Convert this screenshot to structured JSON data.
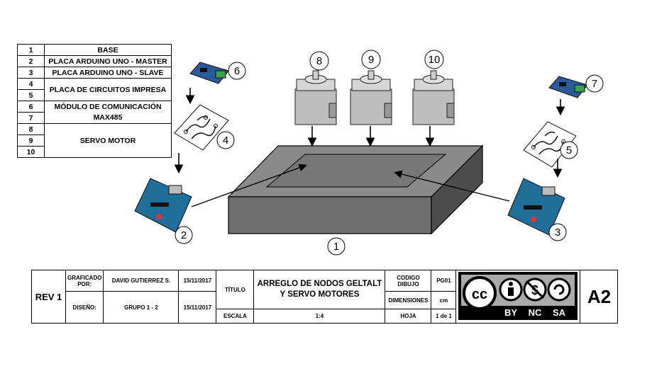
{
  "legend": [
    {
      "num": "1",
      "desc": "BASE"
    },
    {
      "num": "2",
      "desc": "PLACA ARDUINO UNO - MASTER"
    },
    {
      "num": "3",
      "desc": "PLACA ARDUINO UNO - SLAVE"
    },
    {
      "num": "4",
      "desc": "PLACA DE CIRCUITOS IMPRESA"
    },
    {
      "num": "5",
      "desc": ""
    },
    {
      "num": "6",
      "desc": "MÓDULO DE COMUNICACIÓN"
    },
    {
      "num": "7",
      "desc": "MAX485"
    },
    {
      "num": "8",
      "desc": ""
    },
    {
      "num": "9",
      "desc": "SERVO MOTOR"
    },
    {
      "num": "10",
      "desc": ""
    }
  ],
  "callouts": {
    "c1": "1",
    "c2": "2",
    "c3": "3",
    "c4": "4",
    "c5": "5",
    "c6": "6",
    "c7": "7",
    "c8": "8",
    "c9": "9",
    "c10": "10"
  },
  "title_block": {
    "rev": "REV 1",
    "graficado_label": "GRAFICADO POR:",
    "graficado_value": "DAVID GUTIERREZ S.",
    "graficado_date": "15/11/2017",
    "diseno_label": "DISEÑO:",
    "diseno_value": "GRUPO 1 - 2",
    "diseno_date": "15/11/2017",
    "titulo_label": "TÍTULO",
    "titulo_value": "ARREGLO DE NODOS GELTALT Y SERVO MOTORES",
    "escala_label": "ESCALA",
    "escala_value": "1:4",
    "codigo_label": "CODIGO DIBUJO",
    "codigo_value": "PG01",
    "dimensiones_label": "DIMENSIONES",
    "dimensiones_value": "cm",
    "hoja_label": "HOJA",
    "hoja_value": "1 de 1",
    "size": "A2"
  },
  "license": {
    "by": "BY",
    "nc": "NC",
    "sa": "SA",
    "cc": "cc"
  },
  "colors": {
    "base_top": "#8a8a8a",
    "base_front": "#6f6f6f",
    "base_side": "#4d4d4d",
    "arduino": "#1f6f9a",
    "module": "#2a5a9a",
    "module_green": "#3aa04a"
  }
}
